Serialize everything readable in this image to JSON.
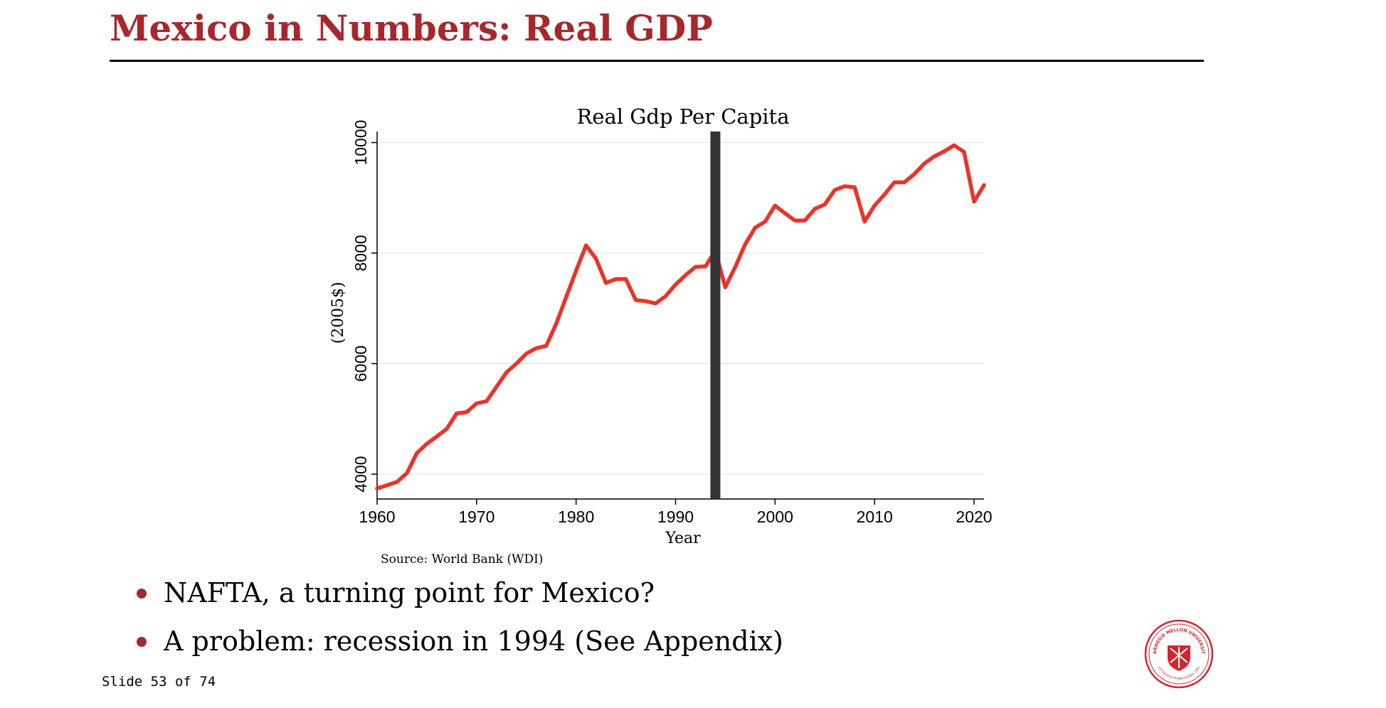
{
  "slide": {
    "title": "Mexico in Numbers: Real GDP",
    "bullets": [
      "NAFTA, a turning point for Mexico?",
      "A problem: recession in 1994 (See Appendix)"
    ],
    "slide_number": "Slide 53 of 74"
  },
  "logo": {
    "text": "CARNEGIE MELLON UNIVERSITY",
    "subtext": "PITTSBURGH PENNSYLVANIA 1900",
    "color": "#D22630"
  },
  "colors": {
    "title": "#A6282D",
    "line": "#E8352A",
    "marker": "#333333",
    "grid": "#E0E0E0"
  },
  "chart_data": {
    "type": "line",
    "title": "Real Gdp Per Capita",
    "xlabel": "Year",
    "ylabel": "(2005$)",
    "source": "Source: World Bank (WDI)",
    "xlim": [
      1960,
      2021
    ],
    "ylim": [
      3550,
      10200
    ],
    "x_ticks": [
      1960,
      1970,
      1980,
      1990,
      2000,
      2010,
      2020
    ],
    "y_ticks": [
      4000,
      6000,
      8000,
      10000
    ],
    "grid": true,
    "vertical_marker": 1994,
    "series": [
      {
        "name": "Real GDP per capita",
        "x": [
          1960,
          1961,
          1962,
          1963,
          1964,
          1965,
          1966,
          1967,
          1968,
          1969,
          1970,
          1971,
          1972,
          1973,
          1974,
          1975,
          1976,
          1977,
          1978,
          1979,
          1980,
          1981,
          1982,
          1983,
          1984,
          1985,
          1986,
          1987,
          1988,
          1989,
          1990,
          1991,
          1992,
          1993,
          1994,
          1995,
          1996,
          1997,
          1998,
          1999,
          2000,
          2001,
          2002,
          2003,
          2004,
          2005,
          2006,
          2007,
          2008,
          2009,
          2010,
          2011,
          2012,
          2013,
          2014,
          2015,
          2016,
          2017,
          2018,
          2019,
          2020,
          2021
        ],
        "values": [
          3740,
          3800,
          3860,
          4020,
          4380,
          4550,
          4680,
          4820,
          5100,
          5120,
          5280,
          5320,
          5580,
          5840,
          6000,
          6180,
          6280,
          6320,
          6720,
          7200,
          7680,
          8140,
          7900,
          7460,
          7530,
          7530,
          7150,
          7130,
          7090,
          7220,
          7430,
          7600,
          7750,
          7760,
          8040,
          7380,
          7750,
          8160,
          8460,
          8570,
          8860,
          8720,
          8590,
          8590,
          8800,
          8880,
          9140,
          9210,
          9190,
          8570,
          8860,
          9060,
          9280,
          9280,
          9430,
          9620,
          9750,
          9840,
          9950,
          9830,
          8930,
          9230
        ]
      }
    ]
  }
}
